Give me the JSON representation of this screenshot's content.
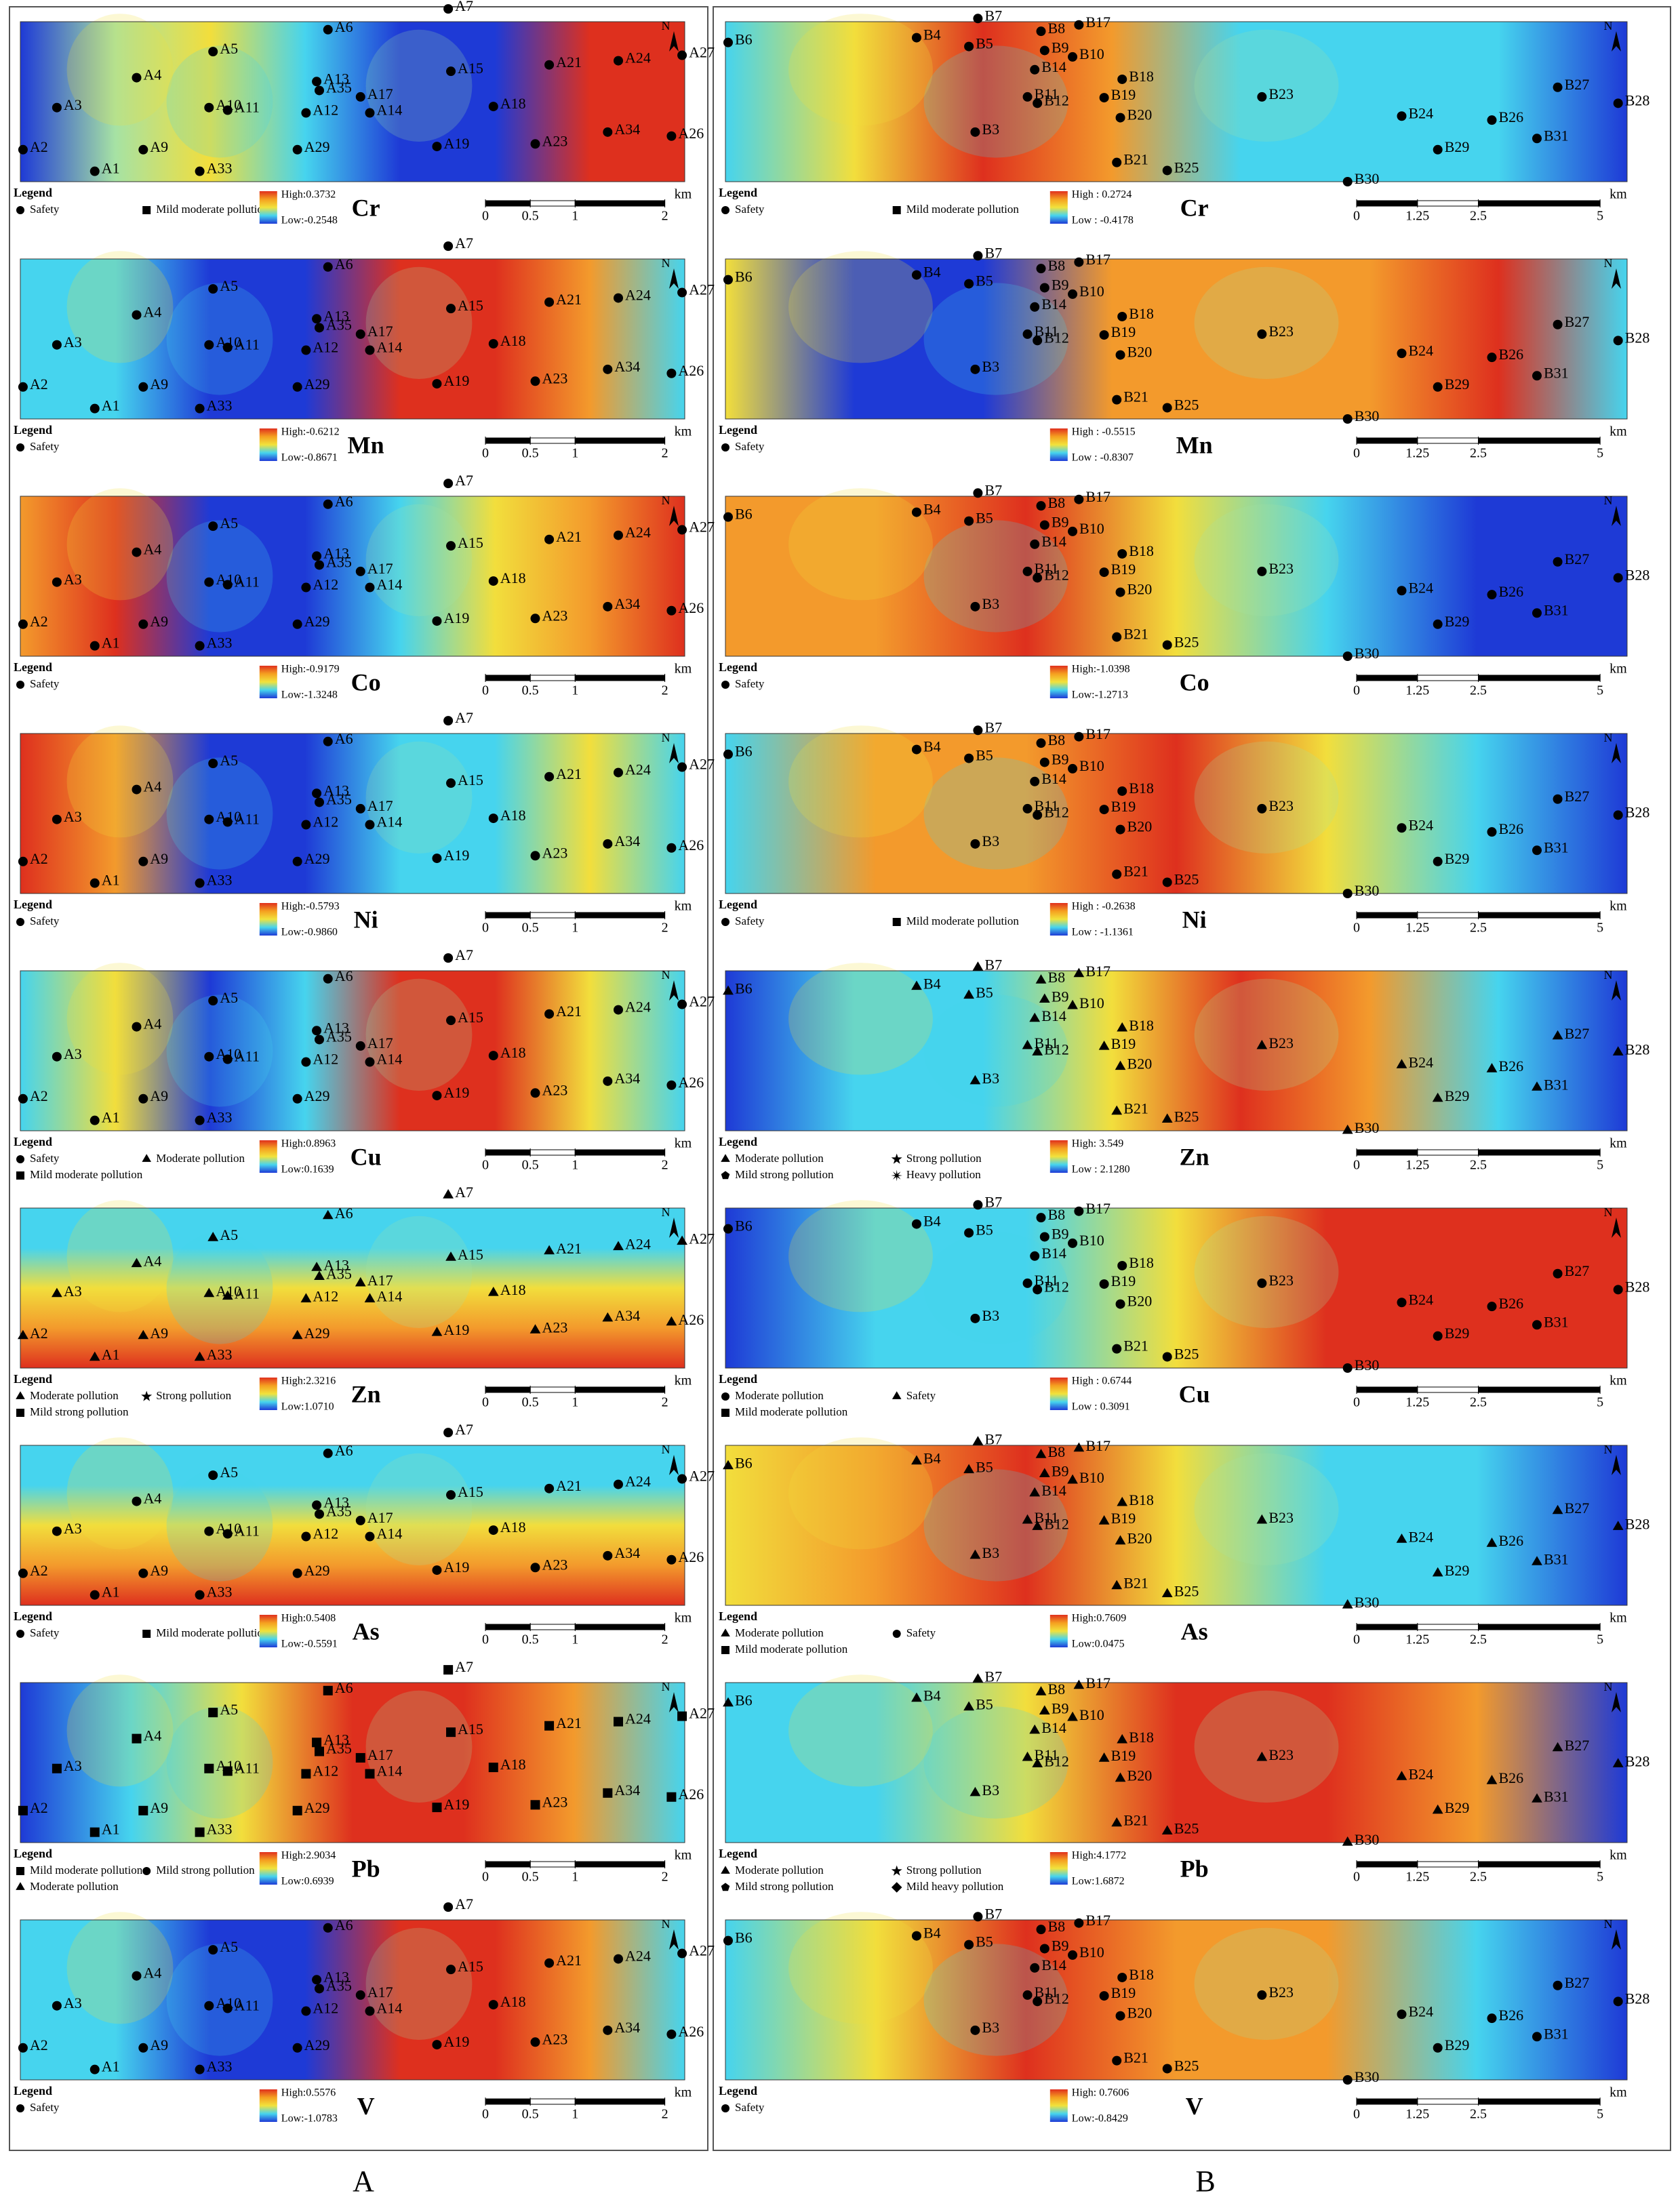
{
  "legend_title": "Legend",
  "north": "N",
  "panels_A": {
    "label": "A",
    "sites": [
      "A1",
      "A2",
      "A3",
      "A4",
      "A5",
      "A6",
      "A7",
      "A9",
      "A10",
      "A11",
      "A12",
      "A13",
      "A14",
      "A15",
      "A17",
      "A18",
      "A19",
      "A21",
      "A23",
      "A24",
      "A26",
      "A27",
      "A29",
      "A33",
      "A34",
      "A35"
    ],
    "scale": {
      "ticks": [
        0,
        0.5,
        1,
        2
      ],
      "unit": "km"
    },
    "maps": [
      {
        "element": "Cr",
        "high": {
          "value": 0.3732,
          "label": "High:0.3732"
        },
        "low": {
          "value": -0.2548,
          "label": "Low:-0.2548"
        },
        "legend": [
          "Safety",
          "Mild moderate pollution"
        ]
      },
      {
        "element": "Mn",
        "high": {
          "value": -0.6212,
          "label": "High:-0.6212"
        },
        "low": {
          "value": -0.8671,
          "label": "Low:-0.8671"
        },
        "legend": [
          "Safety"
        ]
      },
      {
        "element": "Co",
        "high": {
          "value": -0.9179,
          "label": "High:-0.9179"
        },
        "low": {
          "value": -1.3248,
          "label": "Low:-1.3248"
        },
        "legend": [
          "Safety"
        ]
      },
      {
        "element": "Ni",
        "high": {
          "value": -0.5793,
          "label": "High:-0.5793"
        },
        "low": {
          "value": -0.986,
          "label": "Low:-0.9860"
        },
        "legend": [
          "Safety"
        ]
      },
      {
        "element": "Cu",
        "high": {
          "value": 0.8963,
          "label": "High:0.8963"
        },
        "low": {
          "value": 0.1639,
          "label": "Low:0.1639"
        },
        "legend": [
          "Safety",
          "Moderate pollution",
          "Mild moderate pollution"
        ]
      },
      {
        "element": "Zn",
        "high": {
          "value": 2.3216,
          "label": "High:2.3216"
        },
        "low": {
          "value": 1.071,
          "label": "Low:1.0710"
        },
        "legend": [
          "Moderate pollution",
          "Strong pollution",
          "Mild strong pollution"
        ]
      },
      {
        "element": "As",
        "high": {
          "value": 0.5408,
          "label": "High:0.5408"
        },
        "low": {
          "value": -0.5591,
          "label": "Low:-0.5591"
        },
        "legend": [
          "Safety",
          "Mild moderate pollution"
        ]
      },
      {
        "element": "Pb",
        "high": {
          "value": 2.9034,
          "label": "High:2.9034"
        },
        "low": {
          "value": 0.6939,
          "label": "Low:0.6939"
        },
        "legend": [
          "Mild moderate pollution",
          "Mild strong pollution",
          "Moderate pollution"
        ]
      },
      {
        "element": "V",
        "high": {
          "value": 0.5576,
          "label": "High:0.5576"
        },
        "low": {
          "value": -1.0783,
          "label": "Low:-1.0783"
        },
        "legend": [
          "Safety"
        ]
      }
    ]
  },
  "panels_B": {
    "label": "B",
    "sites": [
      "B3",
      "B4",
      "B5",
      "B6",
      "B7",
      "B8",
      "B9",
      "B10",
      "B11",
      "B12",
      "B14",
      "B17",
      "B18",
      "B19",
      "B20",
      "B21",
      "B23",
      "B24",
      "B25",
      "B26",
      "B27",
      "B28",
      "B29",
      "B30",
      "B31"
    ],
    "scale": {
      "ticks": [
        0,
        1.25,
        2.5,
        5
      ],
      "unit": "km"
    },
    "maps": [
      {
        "element": "Cr",
        "high": {
          "value": 0.2724,
          "label": "High : 0.2724"
        },
        "low": {
          "value": -0.4178,
          "label": "Low : -0.4178"
        },
        "legend": [
          "Safety",
          "Mild moderate pollution"
        ]
      },
      {
        "element": "Mn",
        "high": {
          "value": -0.5515,
          "label": "High : -0.5515"
        },
        "low": {
          "value": -0.8307,
          "label": "Low : -0.8307"
        },
        "legend": [
          "Safety"
        ]
      },
      {
        "element": "Co",
        "high": {
          "value": -1.0398,
          "label": "High:-1.0398"
        },
        "low": {
          "value": -1.2713,
          "label": "Low:-1.2713"
        },
        "legend": [
          "Safety"
        ]
      },
      {
        "element": "Ni",
        "high": {
          "value": -0.2638,
          "label": "High : -0.2638"
        },
        "low": {
          "value": -1.1361,
          "label": "Low : -1.1361"
        },
        "legend": [
          "Safety",
          "Mild moderate pollution"
        ]
      },
      {
        "element": "Zn",
        "high": {
          "value": 3.549,
          "label": "High: 3.549"
        },
        "low": {
          "value": 2.128,
          "label": "Low : 2.1280"
        },
        "legend": [
          "Moderate pollution",
          "Strong pollution",
          "Mild strong pollution",
          "Heavy pollution"
        ]
      },
      {
        "element": "Cu",
        "high": {
          "value": 0.6744,
          "label": "High : 0.6744"
        },
        "low": {
          "value": 0.3091,
          "label": "Low : 0.3091"
        },
        "legend": [
          "Moderate pollution",
          "Safety",
          "Mild moderate pollution"
        ]
      },
      {
        "element": "As",
        "high": {
          "value": 0.7609,
          "label": "High:0.7609"
        },
        "low": {
          "value": 0.0475,
          "label": "Low:0.0475"
        },
        "legend": [
          "Moderate pollution",
          "Safety",
          "Mild moderate pollution"
        ]
      },
      {
        "element": "Pb",
        "high": {
          "value": 4.1772,
          "label": "High:4.1772"
        },
        "low": {
          "value": 1.6872,
          "label": "Low:1.6872"
        },
        "legend": [
          "Moderate pollution",
          "Strong pollution",
          "Mild strong pollution",
          "Mild heavy pollution"
        ]
      },
      {
        "element": "V",
        "high": {
          "value": 0.7606,
          "label": "High: 0.7606"
        },
        "low": {
          "value": -0.8429,
          "label": "Low:-0.8429"
        },
        "legend": [
          "Safety"
        ]
      }
    ]
  }
}
